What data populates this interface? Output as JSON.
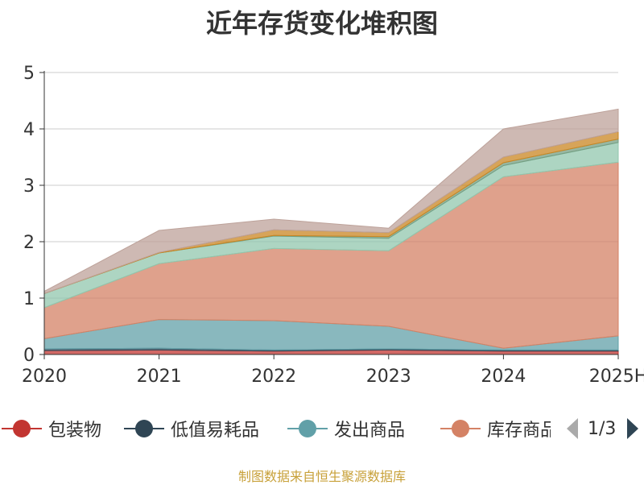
{
  "source_note": "制图数据来自恒生聚源数据库",
  "legend_pager": {
    "page": "1/3"
  },
  "legend_series_visible": [
    "包装物",
    "低值易耗品",
    "发出商品",
    "库存商品"
  ],
  "chart_data": {
    "type": "area",
    "stacked": true,
    "title": "近年存货变化堆积图",
    "xlabel": "",
    "ylabel": "",
    "x": [
      "2020",
      "2021",
      "2022",
      "2023",
      "2024",
      "2025H"
    ],
    "ylim": [
      0,
      5
    ],
    "yticks": [
      0,
      1,
      2,
      3,
      4,
      5
    ],
    "grid": true,
    "legend_position": "bottom",
    "series": [
      {
        "name": "包装物",
        "color": "#c23531",
        "values": [
          0.07,
          0.08,
          0.06,
          0.08,
          0.06,
          0.06
        ]
      },
      {
        "name": "低值易耗品",
        "color": "#2f4554",
        "values": [
          0.03,
          0.03,
          0.02,
          0.02,
          0.02,
          0.02
        ]
      },
      {
        "name": "发出商品",
        "color": "#61a0a8",
        "values": [
          0.18,
          0.51,
          0.52,
          0.4,
          0.03,
          0.25
        ]
      },
      {
        "name": "库存商品",
        "color": "#d48265",
        "values": [
          0.55,
          0.99,
          1.28,
          1.34,
          3.04,
          3.08
        ]
      },
      {
        "name": "",
        "color": "#91c7ae",
        "values": [
          0.25,
          0.19,
          0.22,
          0.22,
          0.2,
          0.35
        ]
      },
      {
        "name": "",
        "color": "#749f83",
        "values": [
          0.0,
          0.0,
          0.01,
          0.03,
          0.05,
          0.06
        ]
      },
      {
        "name": "",
        "color": "#ca8622",
        "values": [
          0.0,
          0.01,
          0.1,
          0.07,
          0.1,
          0.13
        ]
      },
      {
        "name": "",
        "color": "#bda29a",
        "values": [
          0.04,
          0.39,
          0.19,
          0.08,
          0.5,
          0.4
        ]
      }
    ]
  }
}
